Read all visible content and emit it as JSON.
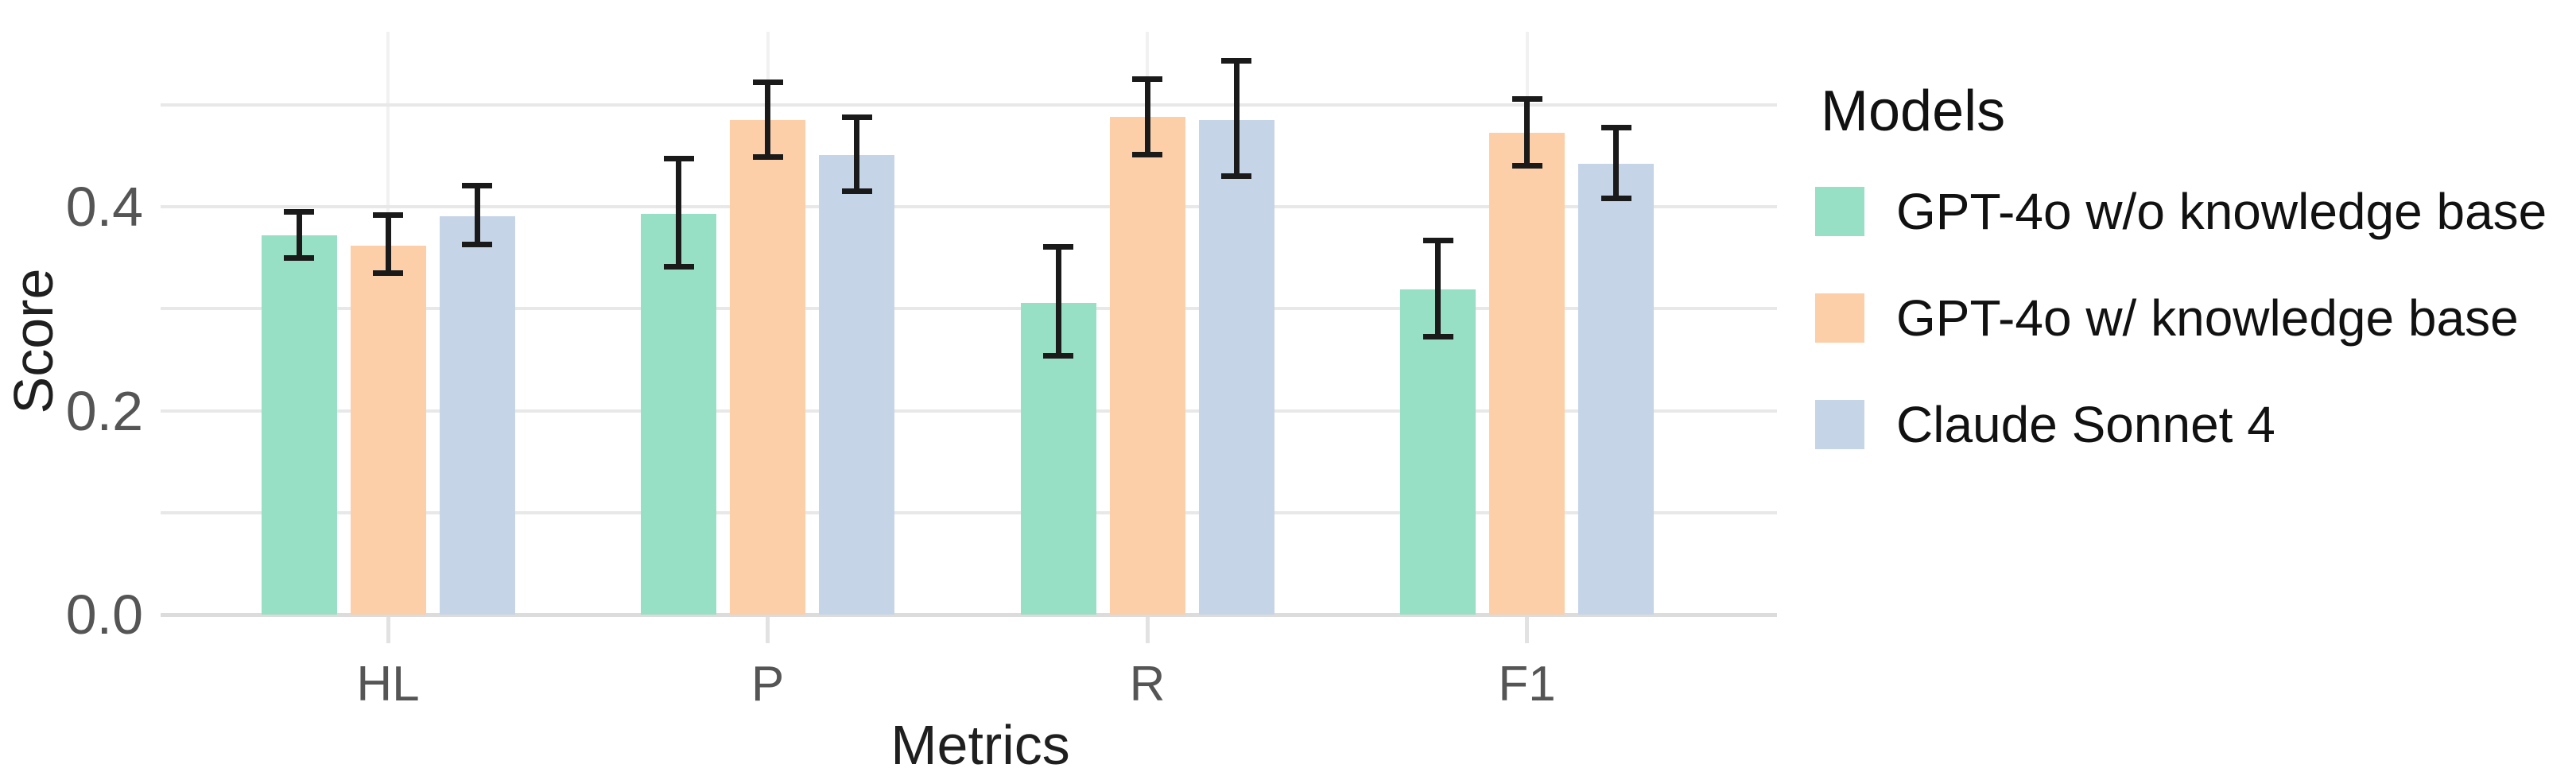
{
  "chart_data": {
    "type": "bar",
    "title": "",
    "xlabel": "Metrics",
    "ylabel": "Score",
    "categories": [
      "HL",
      "P",
      "R",
      "F1"
    ],
    "series": [
      {
        "name": "GPT-4o w/o knowledge base",
        "color": "#97DFC5",
        "values": [
          0.372,
          0.393,
          0.306,
          0.319
        ],
        "error_low": [
          0.35,
          0.341,
          0.254,
          0.273
        ],
        "error_high": [
          0.395,
          0.447,
          0.361,
          0.367
        ]
      },
      {
        "name": "GPT-4o w/ knowledge base",
        "color": "#FCCFA9",
        "values": [
          0.362,
          0.485,
          0.488,
          0.473
        ],
        "error_low": [
          0.335,
          0.449,
          0.451,
          0.44
        ],
        "error_high": [
          0.392,
          0.522,
          0.525,
          0.506
        ]
      },
      {
        "name": "Claude Sonnet 4",
        "color": "#C6D4E7",
        "values": [
          0.391,
          0.451,
          0.485,
          0.442
        ],
        "error_low": [
          0.363,
          0.415,
          0.43,
          0.408
        ],
        "error_high": [
          0.421,
          0.488,
          0.543,
          0.478
        ]
      }
    ],
    "y_ticks": [
      {
        "value": 0.0,
        "label": "0.0"
      },
      {
        "value": 0.2,
        "label": "0.2"
      },
      {
        "value": 0.4,
        "label": "0.4"
      }
    ],
    "y_gridlines": [
      0.0,
      0.1,
      0.2,
      0.3,
      0.4,
      0.5
    ],
    "ylim": [
      0,
      0.57
    ],
    "grid": true,
    "legend": {
      "title": "Models",
      "position": "right"
    },
    "colors": {
      "error_bar": "#1a1a1a",
      "gridline": "#e8e8e8",
      "vertical_gridline": "#f1f1f1",
      "axis_line": "#dcdcdc",
      "tick_mark": "#e2e2e2",
      "tick_label": "#555555",
      "axis_title": "#1f1f1f",
      "legend_text": "#111111"
    }
  }
}
